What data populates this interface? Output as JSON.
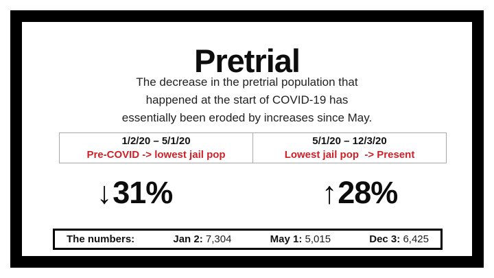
{
  "slide": {
    "title": "Pretrial",
    "subtitle": "The decrease in the pretrial population that\nhappened at the start of COVID-19 has\nessentially been eroded by increases since May.",
    "comparison": {
      "left": {
        "date_range": "1/2/20 – 5/1/20",
        "label": "Pre-COVID -> lowest jail pop",
        "arrow": "↓",
        "change": "31%",
        "direction": "down"
      },
      "right": {
        "date_range": "5/1/20 – 12/3/20",
        "label": "Lowest jail pop  -> Present",
        "arrow": "↑",
        "change": "28%",
        "direction": "up"
      }
    },
    "numbers_bar": {
      "title": "The numbers:",
      "entries": [
        {
          "label": "Jan 2:",
          "value": "7,304"
        },
        {
          "label": "May 1:",
          "value": "5,015"
        },
        {
          "label": "Dec 3:",
          "value": "6,425"
        }
      ]
    },
    "colors": {
      "accent_red": "#cd2127",
      "frame_black": "#000000",
      "table_border": "#a8a8a8"
    }
  }
}
